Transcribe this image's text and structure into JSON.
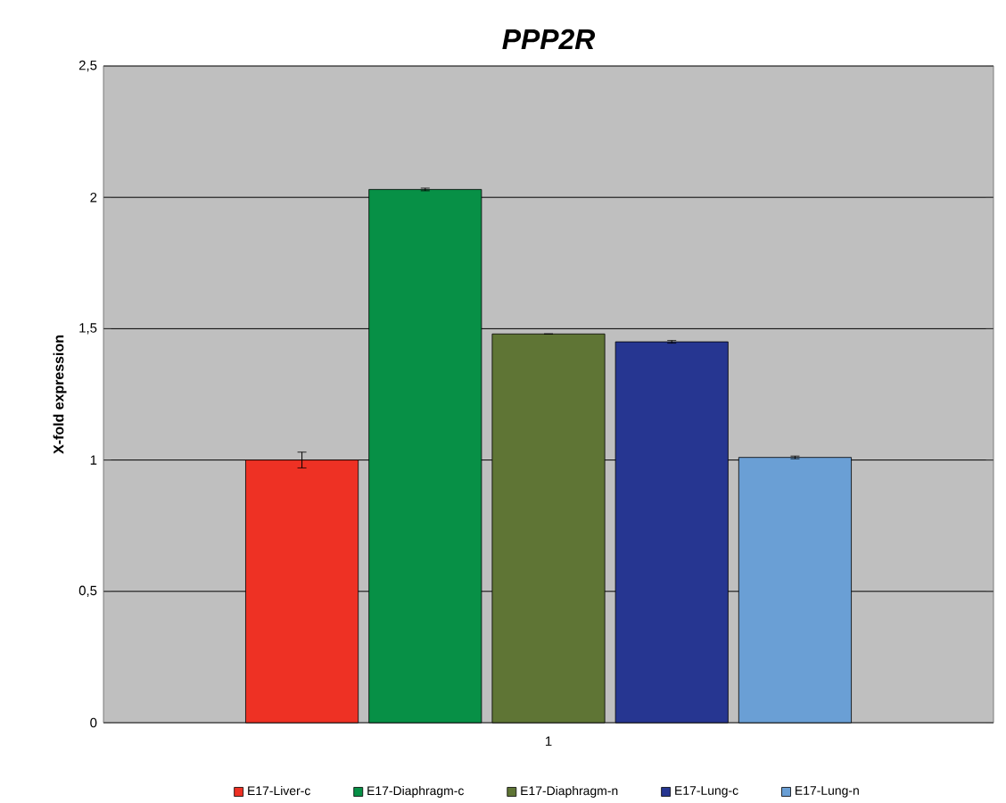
{
  "chart_data": {
    "type": "bar",
    "title": "PPP2R",
    "ylabel": "X-fold expression",
    "categories": [
      "1"
    ],
    "series": [
      {
        "name": "E17-Liver-c",
        "color": "#ee3124",
        "values": [
          1.0
        ],
        "errors": [
          0.03
        ]
      },
      {
        "name": "E17-Diaphragm-c",
        "color": "#079046",
        "values": [
          2.03
        ],
        "errors": [
          0.005
        ]
      },
      {
        "name": "E17-Diaphragm-n",
        "color": "#5f7535",
        "values": [
          1.48
        ],
        "errors": [
          null
        ]
      },
      {
        "name": "E17-Lung-c",
        "color": "#263691",
        "values": [
          1.45
        ],
        "errors": [
          0.005
        ]
      },
      {
        "name": "E17-Lung-n",
        "color": "#6a9fd5",
        "values": [
          1.01
        ],
        "errors": [
          0.005
        ]
      }
    ],
    "ylim": [
      0,
      2.5
    ],
    "yticks": [
      0,
      {
        "value": 0.5,
        "label": "0,5"
      },
      1,
      {
        "value": 1.5,
        "label": "1,5"
      },
      2,
      {
        "value": 2.5,
        "label": "2,5"
      }
    ],
    "grid": "y",
    "legend": "bottom"
  }
}
